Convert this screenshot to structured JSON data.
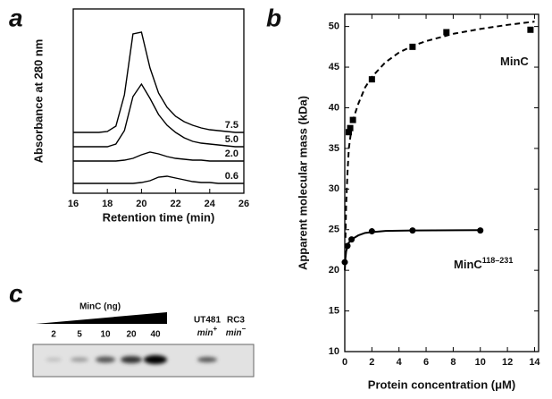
{
  "chart_data": [
    {
      "type": "line",
      "panel_label": "a",
      "x_label": "Retention time (min)",
      "y_label": "Absorbance at 280 nm",
      "xlim": [
        16,
        26
      ],
      "xticks": [
        16,
        18,
        20,
        22,
        24,
        26
      ],
      "ylim": [
        0,
        206
      ],
      "x": [
        16,
        16.5,
        17,
        17.5,
        18,
        18.5,
        19,
        19.5,
        20,
        20.5,
        21,
        21.5,
        22,
        22.5,
        23,
        23.5,
        24,
        24.5,
        25,
        25.5,
        26
      ],
      "series": [
        {
          "name": "7.5",
          "color": "#000000",
          "values": [
            68,
            68,
            68,
            68,
            69,
            75,
            110,
            178,
            180,
            140,
            112,
            96,
            86,
            80,
            76,
            73,
            71,
            70,
            69,
            68,
            68
          ]
        },
        {
          "name": "5.0",
          "color": "#000000",
          "values": [
            52,
            52,
            52,
            52,
            52,
            55,
            70,
            108,
            122,
            106,
            88,
            76,
            68,
            62,
            58,
            56,
            55,
            54,
            53,
            52,
            52
          ]
        },
        {
          "name": "2.0",
          "color": "#000000",
          "values": [
            36,
            36,
            36,
            36,
            36,
            36,
            37,
            39,
            43,
            46,
            44,
            41,
            39,
            38,
            37,
            37,
            36,
            36,
            36,
            36,
            36
          ]
        },
        {
          "name": "0.6",
          "color": "#000000",
          "values": [
            11,
            11,
            11,
            11,
            11,
            11,
            11,
            11,
            12,
            14,
            18,
            19,
            17,
            15,
            13,
            12,
            12,
            11,
            11,
            11,
            11
          ]
        }
      ]
    },
    {
      "type": "scatter",
      "panel_label": "b",
      "x_label": "Protein concentration (μM)",
      "y_label": "Apparent molecular mass (kDa)",
      "xlim": [
        0,
        14.3
      ],
      "xticks": [
        0,
        2,
        4,
        6,
        8,
        10,
        12,
        14
      ],
      "ylim": [
        10,
        51.5
      ],
      "yticks": [
        10,
        15,
        20,
        25,
        30,
        35,
        40,
        45,
        50
      ],
      "series": [
        {
          "name": "MinC",
          "color": "#000000",
          "marker": "square",
          "line": "dashed",
          "x": [
            0.3,
            0.4,
            0.6,
            2,
            5,
            7.5,
            13.7
          ],
          "values": [
            37,
            37.5,
            38.5,
            43.5,
            47.5,
            49.3,
            49.6
          ],
          "fit_x": [
            0.05,
            0.1,
            0.2,
            0.3,
            0.5,
            0.7,
            1,
            1.5,
            2,
            3,
            4,
            5,
            6,
            8,
            10,
            12,
            14
          ],
          "fit_values": [
            24,
            28,
            32,
            35,
            37.5,
            39,
            40.5,
            42.5,
            43.8,
            45.6,
            46.8,
            47.6,
            48.2,
            49.1,
            49.7,
            50.2,
            50.6
          ]
        },
        {
          "name": "MinC",
          "name_sup": "118–231",
          "color": "#000000",
          "marker": "circle",
          "line": "solid",
          "x": [
            0,
            0.2,
            0.5,
            2,
            5,
            10
          ],
          "values": [
            21,
            23,
            23.8,
            24.8,
            24.9,
            24.9
          ],
          "fit_x": [
            0,
            0.05,
            0.1,
            0.2,
            0.3,
            0.5,
            1,
            1.5,
            2,
            3,
            5,
            10
          ],
          "fit_values": [
            20,
            21.5,
            22.3,
            23,
            23.4,
            23.8,
            24.3,
            24.6,
            24.7,
            24.85,
            24.9,
            24.95
          ]
        }
      ]
    }
  ],
  "panel_c": {
    "panel_label": "c",
    "wedge_label": "MinC (ng)",
    "lanes": [
      "2",
      "5",
      "10",
      "20",
      "40"
    ],
    "controls": [
      {
        "strain": "UT481",
        "genotype": "min",
        "sup": "+"
      },
      {
        "strain": "RC3",
        "genotype": "min",
        "sup": "−"
      }
    ]
  }
}
